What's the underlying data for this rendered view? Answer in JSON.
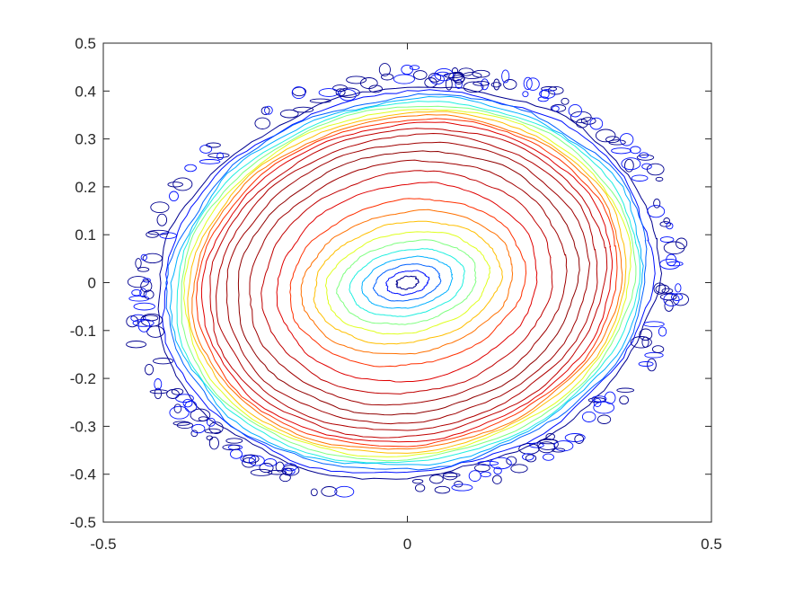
{
  "chart_data": {
    "type": "contour",
    "title": "",
    "xlabel": "",
    "ylabel": "",
    "xlim": [
      -0.5,
      0.5
    ],
    "ylim": [
      -0.5,
      0.5
    ],
    "xticks": [
      -0.5,
      0,
      0.5
    ],
    "xtick_labels": [
      "-0.5",
      "0",
      "0.5"
    ],
    "yticks": [
      0.5,
      0.4,
      0.3,
      0.2,
      0.1,
      0,
      -0.1,
      -0.2,
      -0.3,
      -0.4,
      -0.5
    ],
    "ytick_labels": [
      "0.5",
      "0.4",
      "0.3",
      "0.2",
      "0.1",
      "0",
      "-0.1",
      "-0.2",
      "-0.3",
      "-0.4",
      "-0.5"
    ],
    "grid": false,
    "colormap": "jet",
    "shape": "elliptical ring (rotated approx. -10 deg)",
    "features": {
      "outer_boundary_radius_x": 0.41,
      "outer_boundary_radius_y": 0.4,
      "center_minimum": [
        0.0,
        0.0
      ],
      "ring_maximum_radius": 0.2
    },
    "levels": [
      {
        "rx": 0.415,
        "ry": 0.405,
        "color": "#00008f"
      },
      {
        "rx": 0.405,
        "ry": 0.395,
        "color": "#0010ff"
      },
      {
        "rx": 0.397,
        "ry": 0.387,
        "color": "#0060ff"
      },
      {
        "rx": 0.39,
        "ry": 0.38,
        "color": "#00b0ff"
      },
      {
        "rx": 0.383,
        "ry": 0.373,
        "color": "#20efdf"
      },
      {
        "rx": 0.376,
        "ry": 0.366,
        "color": "#7fff80"
      },
      {
        "rx": 0.369,
        "ry": 0.359,
        "color": "#dfff20"
      },
      {
        "rx": 0.362,
        "ry": 0.352,
        "color": "#ffbf00"
      },
      {
        "rx": 0.355,
        "ry": 0.345,
        "color": "#ff7000"
      },
      {
        "rx": 0.348,
        "ry": 0.338,
        "color": "#ff3000"
      },
      {
        "rx": 0.339,
        "ry": 0.33,
        "color": "#e00000"
      },
      {
        "rx": 0.328,
        "ry": 0.319,
        "color": "#c00000"
      },
      {
        "rx": 0.315,
        "ry": 0.306,
        "color": "#b00000"
      },
      {
        "rx": 0.3,
        "ry": 0.29,
        "color": "#a00000"
      },
      {
        "rx": 0.282,
        "ry": 0.272,
        "color": "#900000"
      },
      {
        "rx": 0.262,
        "ry": 0.252,
        "color": "#a00000"
      },
      {
        "rx": 0.24,
        "ry": 0.23,
        "color": "#c00000"
      },
      {
        "rx": 0.215,
        "ry": 0.205,
        "color": "#e00000"
      },
      {
        "rx": 0.195,
        "ry": 0.172,
        "color": "#ff3000"
      },
      {
        "rx": 0.175,
        "ry": 0.147,
        "color": "#ff7000"
      },
      {
        "rx": 0.155,
        "ry": 0.125,
        "color": "#ffbf00"
      },
      {
        "rx": 0.135,
        "ry": 0.104,
        "color": "#dfff20"
      },
      {
        "rx": 0.115,
        "ry": 0.085,
        "color": "#7fff80"
      },
      {
        "rx": 0.095,
        "ry": 0.068,
        "color": "#20efdf"
      },
      {
        "rx": 0.075,
        "ry": 0.052,
        "color": "#00b0ff"
      },
      {
        "rx": 0.055,
        "ry": 0.037,
        "color": "#0060ff"
      },
      {
        "rx": 0.035,
        "ry": 0.024,
        "color": "#0010ff"
      },
      {
        "rx": 0.018,
        "ry": 0.013,
        "color": "#00008f"
      }
    ]
  }
}
